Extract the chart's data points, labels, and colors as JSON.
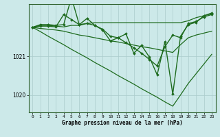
{
  "bg_color": "#cce9e9",
  "grid_color": "#aacccc",
  "line_color": "#1e6b1e",
  "xlabel": "Graphe pression niveau de la mer (hPa)",
  "ylim": [
    1019.55,
    1022.35
  ],
  "xlim": [
    -0.5,
    23.5
  ],
  "xticks": [
    0,
    1,
    2,
    3,
    4,
    5,
    6,
    7,
    8,
    9,
    10,
    11,
    12,
    13,
    14,
    15,
    16,
    17,
    18,
    19,
    20,
    21,
    22,
    23
  ],
  "ytick_positions": [
    1020.0,
    1021.0
  ],
  "ytick_labels": [
    "1020",
    "1021"
  ],
  "s1_y": [
    1021.75,
    1021.8,
    1021.8,
    1021.78,
    1021.76,
    1021.8,
    1021.8,
    1021.85,
    1021.87,
    1021.87,
    1021.87,
    1021.87,
    1021.87,
    1021.87,
    1021.87,
    1021.87,
    1021.87,
    1021.87,
    1021.87,
    1021.87,
    1021.92,
    1022.0,
    1022.05,
    1022.1
  ],
  "s2_y": [
    1021.75,
    1021.72,
    1021.7,
    1021.68,
    1021.65,
    1021.6,
    1021.55,
    1021.52,
    1021.48,
    1021.44,
    1021.4,
    1021.37,
    1021.33,
    1021.29,
    1021.25,
    1021.22,
    1021.18,
    1021.14,
    1021.1,
    1021.3,
    1021.48,
    1021.55,
    1021.6,
    1021.65
  ],
  "s3_y": [
    1021.75,
    1021.64,
    1021.52,
    1021.41,
    1021.3,
    1021.18,
    1021.07,
    1020.96,
    1020.84,
    1020.73,
    1020.62,
    1020.5,
    1020.39,
    1020.28,
    1020.16,
    1020.05,
    1019.94,
    1019.82,
    1019.71,
    1020.0,
    1020.3,
    1020.55,
    1020.8,
    1021.05
  ],
  "s_med_y": [
    1021.75,
    1021.78,
    1021.78,
    1021.76,
    1022.08,
    1021.95,
    1021.82,
    1021.85,
    1021.8,
    1021.7,
    1021.52,
    1021.48,
    1021.35,
    1021.22,
    1021.08,
    1020.92,
    1020.75,
    1021.25,
    1021.55,
    1021.48,
    1021.85,
    1021.9,
    1022.02,
    1022.08
  ],
  "s_main_y": [
    1021.75,
    1021.82,
    1021.82,
    1021.8,
    1021.82,
    1022.52,
    1021.82,
    1021.98,
    1021.8,
    1021.68,
    1021.4,
    1021.48,
    1021.58,
    1021.08,
    1021.28,
    1020.98,
    1020.52,
    1021.38,
    1020.02,
    1021.52,
    1021.82,
    1021.88,
    1022.05,
    1022.12
  ]
}
